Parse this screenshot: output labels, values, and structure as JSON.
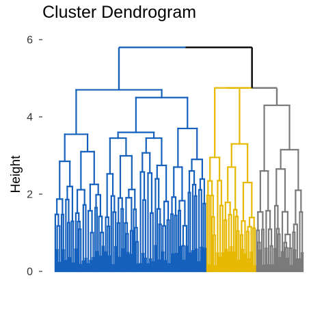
{
  "chart_data": {
    "type": "dendrogram",
    "title": "Cluster Dendrogram",
    "xlabel": "",
    "ylabel": "Height",
    "ylim": [
      0,
      6
    ],
    "y_ticks": [
      0,
      2,
      4,
      6
    ],
    "grid": false,
    "leaf_count": 200,
    "colors": {
      "cluster_1": "#1560bd",
      "cluster_2": "#e7b800",
      "cluster_3": "#7a7a7a",
      "root": "#000000"
    },
    "clusters": [
      {
        "name": "cluster_1",
        "color": "#1560bd",
        "leaf_range": [
          0,
          121
        ],
        "merge_height": 4.7,
        "subclusters": [
          {
            "leaf_range": [
              0,
              39
            ],
            "height": 3.55,
            "children": [
              {
                "leaf_range": [
                  0,
                  15
                ],
                "height": 2.85
              },
              {
                "leaf_range": [
                  16,
                  39
                ],
                "height": 3.1
              }
            ]
          },
          {
            "leaf_range": [
              40,
              121
            ],
            "height": 4.5,
            "children": [
              {
                "leaf_range": [
                  40,
                  92
                ],
                "height": 3.6,
                "children": [
                  {
                    "leaf_range": [
                      40,
                      67
                    ],
                    "height": 3.45
                  },
                  {
                    "leaf_range": [
                      68,
                      92
                    ],
                    "height": 3.45
                  }
                ]
              },
              {
                "leaf_range": [
                  93,
                  121
                ],
                "height": 3.7,
                "children": [
                  {
                    "leaf_range": [
                      93,
                      106
                    ],
                    "height": 2.7
                  },
                  {
                    "leaf_range": [
                      107,
                      121
                    ],
                    "height": 2.9
                  }
                ]
              }
            ]
          }
        ]
      },
      {
        "name": "cluster_2",
        "color": "#e7b800",
        "leaf_range": [
          122,
          161
        ],
        "merge_height": 4.75,
        "subclusters": [
          {
            "leaf_range": [
              122,
              135
            ],
            "height": 2.95
          },
          {
            "leaf_range": [
              136,
              161
            ],
            "height": 3.3,
            "children": [
              {
                "leaf_range": [
                  136,
                  148
                ],
                "height": 2.7
              },
              {
                "leaf_range": [
                  149,
                  161
                ],
                "height": 2.3
              }
            ]
          }
        ]
      },
      {
        "name": "cluster_3",
        "color": "#7a7a7a",
        "leaf_range": [
          162,
          199
        ],
        "merge_height": 4.3,
        "subclusters": [
          {
            "leaf_range": [
              162,
              175
            ],
            "height": 2.6
          },
          {
            "leaf_range": [
              176,
              199
            ],
            "height": 3.15,
            "children": [
              {
                "leaf_range": [
                  176,
                  190
                ],
                "height": 2.65
              },
              {
                "leaf_range": [
                  191,
                  199
                ],
                "height": 2.1
              }
            ]
          }
        ]
      }
    ],
    "merges": [
      {
        "between": [
          "cluster_2",
          "cluster_3"
        ],
        "height": 4.75,
        "color": "#7a7a7a"
      },
      {
        "between": [
          "cluster_1",
          "cluster_2+cluster_3"
        ],
        "height": 5.8,
        "color": "#000000"
      }
    ]
  }
}
